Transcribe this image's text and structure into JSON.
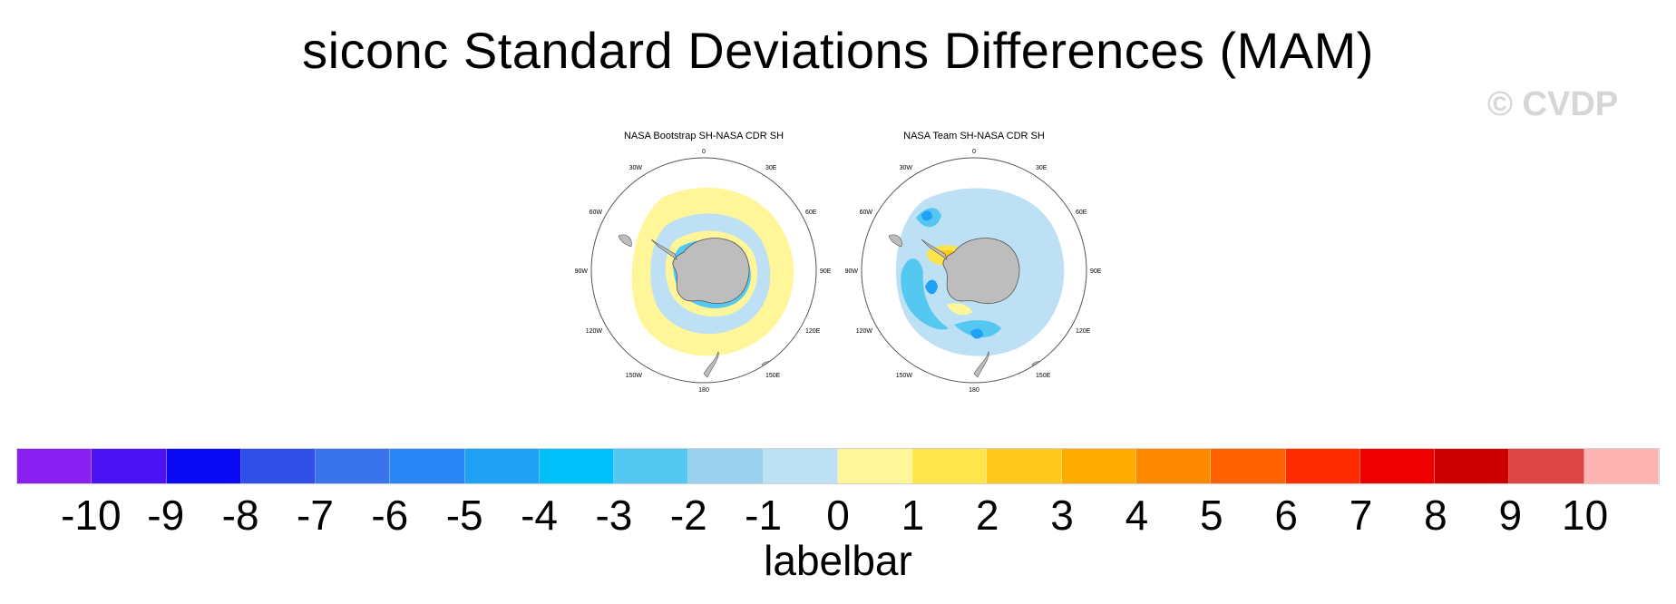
{
  "figure": {
    "title": "siconc Standard Deviations Differences (MAM)",
    "credit": "© CVDP"
  },
  "map_data": {
    "projection": "south-polar-stereographic",
    "continent_color": "#bdbdbd",
    "panels": [
      {
        "title": "NASA Bootstrap SH-NASA CDR SH",
        "longitude_labels": [
          "0",
          "30E",
          "60E",
          "90E",
          "120E",
          "150E",
          "180",
          "150W",
          "120W",
          "90W",
          "60W",
          "30W"
        ],
        "pattern": "mostly weak positive (0 to 1) in the outer ice edge, thin negative ring (-1 to -3) along coast"
      },
      {
        "title": "NASA Team SH-NASA CDR SH",
        "longitude_labels": [
          "0",
          "30E",
          "60E",
          "90E",
          "120E",
          "150E",
          "180",
          "150W",
          "120W",
          "90W",
          "60W",
          "30W"
        ],
        "pattern": "widespread negative (-1 to -3) ring, positive (1 to 3) in Weddell Sea"
      }
    ]
  },
  "labelbar": {
    "title": "labelbar",
    "ticks": [
      "-10",
      "-9",
      "-8",
      "-7",
      "-6",
      "-5",
      "-4",
      "-3",
      "-2",
      "-1",
      "0",
      "1",
      "2",
      "3",
      "4",
      "5",
      "6",
      "7",
      "8",
      "9",
      "10"
    ],
    "colors": [
      "#8a1ff2",
      "#4a12f5",
      "#0a0af5",
      "#2f4fe8",
      "#3a74ec",
      "#2a86f4",
      "#1fa2f6",
      "#00c0fa",
      "#55c8f2",
      "#99d0ee",
      "#bde0f4",
      "#fff69a",
      "#ffe54a",
      "#ffc81c",
      "#ffab00",
      "#ff8a00",
      "#ff6000",
      "#ff2a00",
      "#ee0000",
      "#cc0000",
      "#dd4545",
      "#ffb4b4"
    ]
  }
}
